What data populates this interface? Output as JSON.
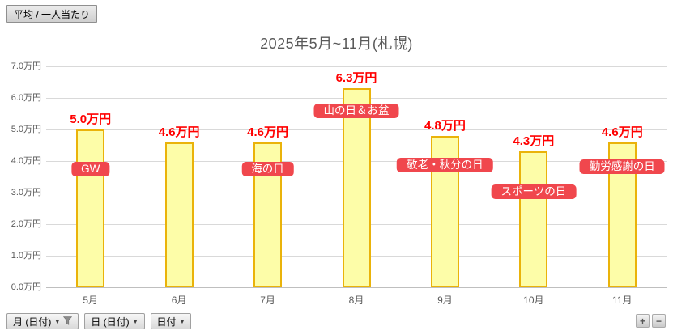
{
  "value_field_button": {
    "label": "平均 / 一人当たり"
  },
  "chart_data": {
    "type": "bar",
    "title": "2025年5月~11月(札幌)",
    "categories": [
      "5月",
      "6月",
      "7月",
      "8月",
      "9月",
      "10月",
      "11月"
    ],
    "values": [
      5.0,
      4.6,
      4.6,
      6.3,
      4.8,
      4.3,
      4.6
    ],
    "value_labels": [
      "5.0万円",
      "4.6万円",
      "4.6万円",
      "6.3万円",
      "4.8万円",
      "4.3万円",
      "4.6万円"
    ],
    "unit": "万円",
    "xlabel": "",
    "ylabel": "",
    "ylim": [
      0,
      7
    ],
    "ytick_interval": 1.0,
    "ytick_labels": [
      "0.0万円",
      "1.0万円",
      "2.0万円",
      "3.0万円",
      "4.0万円",
      "5.0万円",
      "6.0万円",
      "7.0万円"
    ],
    "grid": true,
    "legend": "none",
    "annotations": [
      {
        "category": "5月",
        "label": "GW"
      },
      {
        "category": "7月",
        "label": "海の日"
      },
      {
        "category": "8月",
        "label": "山の日＆お盆"
      },
      {
        "category": "9月",
        "label": "敬老・秋分の日"
      },
      {
        "category": "10月",
        "label": "スポーツの日"
      },
      {
        "category": "11月",
        "label": "勤労感謝の日"
      }
    ]
  },
  "field_buttons": [
    {
      "label": "月 (日付)",
      "dropdown": true,
      "filtered": true
    },
    {
      "label": "日 (日付)",
      "dropdown": true,
      "filtered": false
    },
    {
      "label": "日付",
      "dropdown": true,
      "filtered": false
    }
  ],
  "drill_buttons": {
    "expand": "+",
    "collapse": "−"
  },
  "colors": {
    "bar_fill": "#FDFDA8",
    "bar_border": "#EAB30A",
    "value_label": "#FF0000",
    "annotation_bg": "#F0474D",
    "annotation_text": "#FFFFFF",
    "title": "#595959",
    "axis_text": "#595959",
    "gridline": "#D9D9D9",
    "axis_line": "#BFBFBF"
  }
}
